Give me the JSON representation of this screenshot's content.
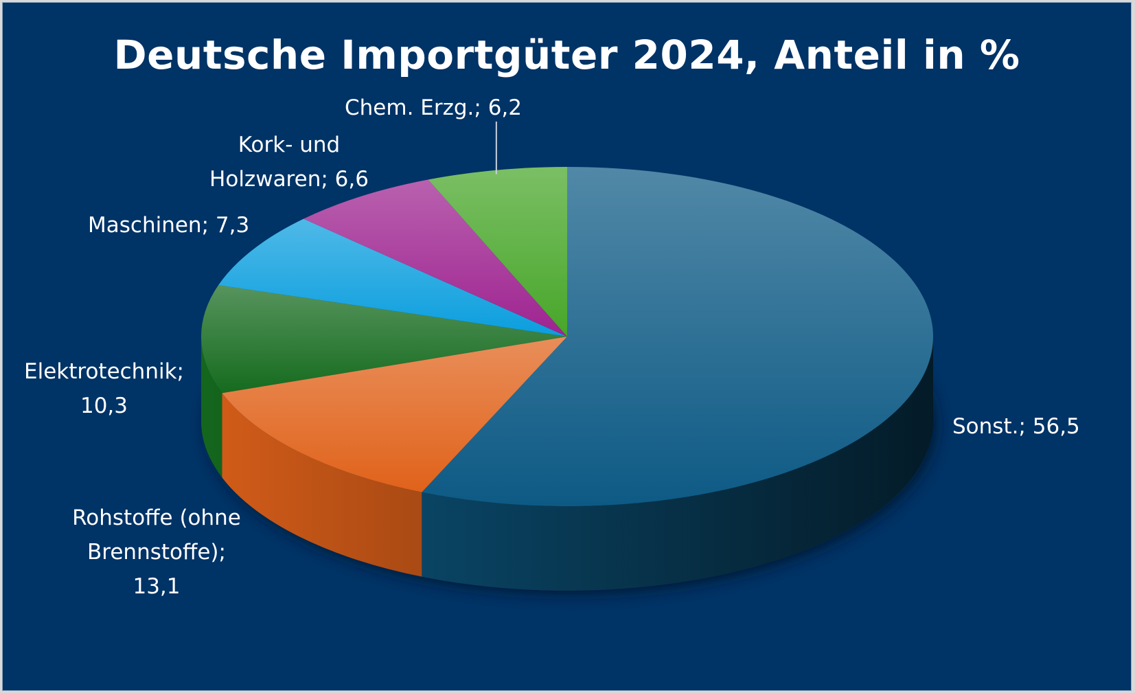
{
  "chart_data": {
    "type": "pie",
    "title": "Deutsche Importgüter 2024, Anteil in %",
    "variant": "3d",
    "slices": [
      {
        "name": "Sonst.",
        "value": 56.5,
        "label_lines": [
          "Sonst.; 56,5"
        ],
        "color": "#0d5a85"
      },
      {
        "name": "Rohstoffe (ohne Brennstoffe)",
        "value": 13.1,
        "label_lines": [
          "Rohstoffe (ohne",
          "Brennstoffe);",
          "13,1"
        ],
        "color": "#e0621a"
      },
      {
        "name": "Elektrotechnik",
        "value": 10.3,
        "label_lines": [
          "Elektrotechnik;",
          "10,3"
        ],
        "color": "#156b1e"
      },
      {
        "name": "Maschinen",
        "value": 7.3,
        "label_lines": [
          "Maschinen; 7,3"
        ],
        "color": "#0a9ede"
      },
      {
        "name": "Kork- und Holzwaren",
        "value": 6.6,
        "label_lines": [
          "Kork- und",
          "Holzwaren; 6,6"
        ],
        "color": "#9e2390"
      },
      {
        "name": "Chem. Erzg.",
        "value": 6.2,
        "label_lines": [
          "Chem. Erzg.; 6,2"
        ],
        "color": "#47a629"
      }
    ]
  },
  "colors": {
    "background": "#003366",
    "text": "#ffffff"
  }
}
